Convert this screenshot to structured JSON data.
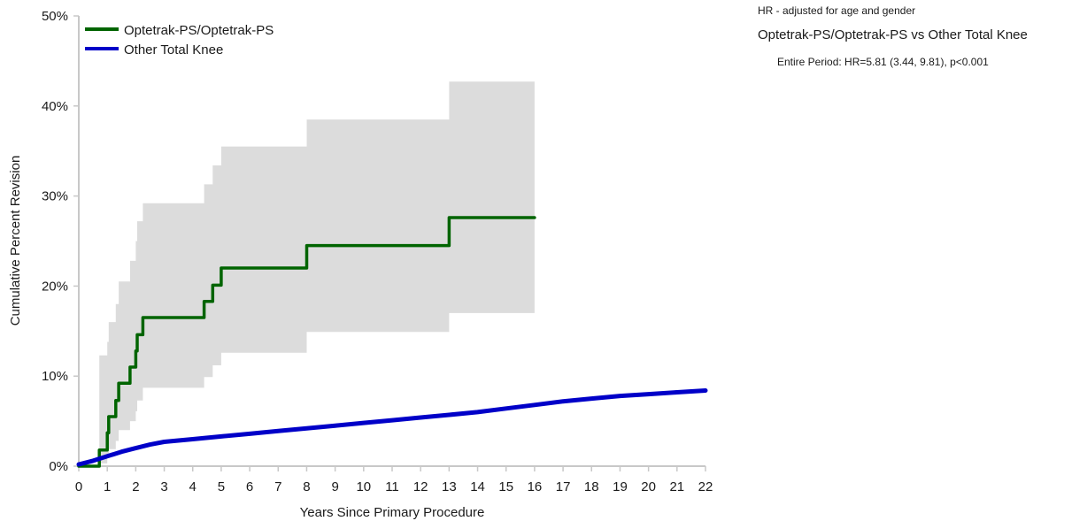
{
  "notes": {
    "adjustment": "HR - adjusted for age and gender",
    "comparison": "Optetrak-PS/Optetrak-PS vs Other Total Knee",
    "period_stat": "Entire Period: HR=5.81 (3.44, 9.81), p<0.001"
  },
  "colors": {
    "optetrak": "#006400",
    "other": "#0000c8",
    "ci_band": "#dcdcdc",
    "axis": "#c8c8c8"
  },
  "chart_data": {
    "type": "line",
    "xlabel": "Years Since Primary Procedure",
    "ylabel": "Cumulative Percent Revision",
    "xlim": [
      0,
      22
    ],
    "ylim": [
      0,
      50
    ],
    "x_ticks": [
      "0",
      "1",
      "2",
      "3",
      "4",
      "5",
      "6",
      "7",
      "8",
      "9",
      "10",
      "11",
      "12",
      "13",
      "14",
      "15",
      "16",
      "17",
      "18",
      "19",
      "20",
      "21",
      "22"
    ],
    "y_ticks": [
      "0%",
      "10%",
      "20%",
      "30%",
      "40%",
      "50%"
    ],
    "grid": false,
    "legend_position": "top-left",
    "series": [
      {
        "name": "Optetrak-PS/Optetrak-PS",
        "step": true,
        "x": [
          0,
          0.72,
          1.0,
          1.05,
          1.1,
          1.3,
          1.4,
          1.8,
          2.0,
          2.05,
          2.25,
          4.4,
          4.7,
          5.0,
          8.0,
          13.0,
          16.0
        ],
        "y": [
          0,
          1.8,
          3.7,
          5.5,
          5.5,
          7.3,
          9.2,
          11.0,
          12.8,
          14.6,
          16.5,
          18.3,
          20.1,
          22.0,
          24.5,
          27.6,
          27.6
        ],
        "ci_upper": [
          0,
          12.3,
          13.8,
          16.0,
          16.0,
          18.0,
          20.5,
          22.8,
          25.0,
          27.2,
          29.2,
          31.3,
          33.4,
          35.5,
          38.5,
          42.7,
          42.7
        ],
        "ci_lower": [
          0,
          0.3,
          1.0,
          1.9,
          1.9,
          2.8,
          4.0,
          5.0,
          6.1,
          7.3,
          8.7,
          9.9,
          11.2,
          12.6,
          14.9,
          17.0,
          17.0
        ]
      },
      {
        "name": "Other Total Knee",
        "step": false,
        "x": [
          0,
          0.5,
          1,
          1.5,
          2,
          2.5,
          3,
          4,
          5,
          6,
          7,
          8,
          9,
          10,
          11,
          12,
          13,
          14,
          15,
          16,
          17,
          18,
          19,
          20,
          21,
          22
        ],
        "y": [
          0.2,
          0.6,
          1.1,
          1.6,
          2.0,
          2.4,
          2.7,
          3.0,
          3.3,
          3.6,
          3.9,
          4.2,
          4.5,
          4.8,
          5.1,
          5.4,
          5.7,
          6.0,
          6.4,
          6.8,
          7.2,
          7.5,
          7.8,
          8.0,
          8.2,
          8.4
        ]
      }
    ]
  }
}
